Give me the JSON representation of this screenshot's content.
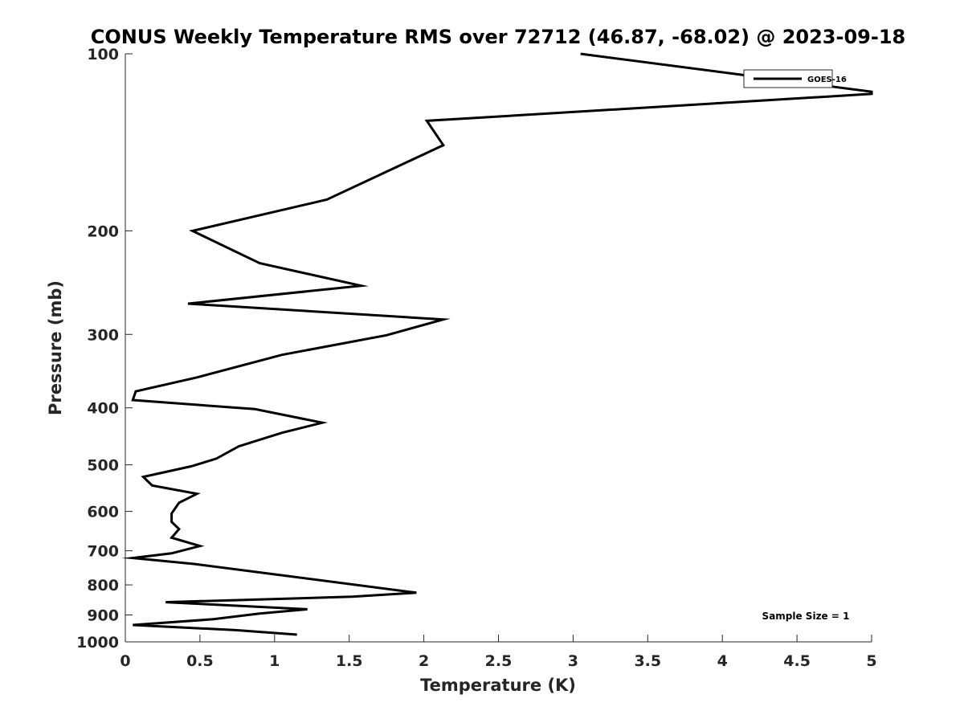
{
  "chart_data": {
    "type": "line",
    "title": "CONUS Weekly Temperature RMS over 72712 (46.87, -68.02) @ 2023-09-18",
    "xlabel": "Temperature (K)",
    "ylabel": "Pressure (mb)",
    "xlim": [
      0,
      5
    ],
    "ylim": [
      100,
      1000
    ],
    "y_scale": "log",
    "y_reversed": true,
    "x_ticks": [
      "0",
      "0.5",
      "1",
      "1.5",
      "2",
      "2.5",
      "3",
      "3.5",
      "4",
      "4.5",
      "5"
    ],
    "y_ticks": [
      "100",
      "200",
      "300",
      "400",
      "500",
      "600",
      "700",
      "800",
      "900",
      "1000"
    ],
    "grid": false,
    "legend_placement": "top-right",
    "annotation": "Sample Size = 1",
    "line_color": "#000000",
    "series": [
      {
        "name": "GOES-16",
        "x": [
          3.05,
          5.0,
          5.0,
          2.02,
          2.13,
          1.35,
          0.45,
          0.9,
          1.58,
          0.42,
          2.13,
          1.75,
          1.05,
          0.48,
          0.07,
          0.05,
          0.87,
          1.32,
          1.05,
          0.76,
          0.61,
          0.44,
          0.12,
          0.18,
          0.48,
          0.36,
          0.31,
          0.31,
          0.36,
          0.31,
          0.5,
          0.31,
          0.05,
          0.46,
          1.95,
          1.52,
          0.27,
          1.22,
          0.9,
          0.59,
          0.05,
          0.74,
          1.15
        ],
        "y": [
          100,
          116,
          117,
          130,
          143,
          177,
          200,
          227,
          248,
          266,
          283,
          301,
          325,
          355,
          375,
          388,
          402,
          424,
          441,
          465,
          488,
          503,
          524,
          542,
          560,
          580,
          605,
          625,
          643,
          665,
          687,
          707,
          720,
          737,
          825,
          838,
          856,
          880,
          895,
          915,
          936,
          955,
          972
        ]
      }
    ]
  }
}
